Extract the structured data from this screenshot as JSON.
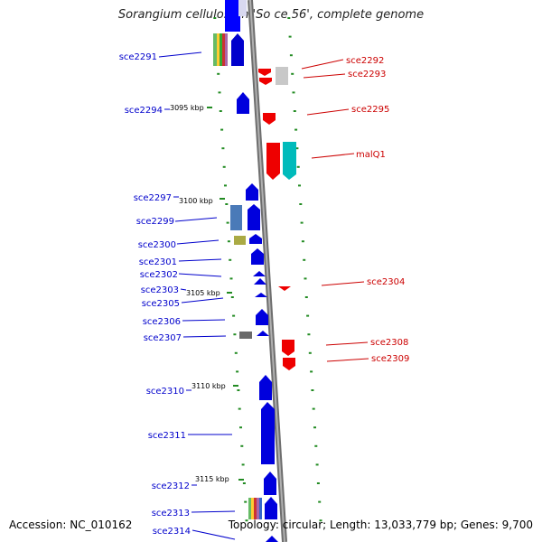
{
  "title": "Sorangium cellulosum 'So ce 56', complete genome",
  "footer": {
    "accession": "Accession: NC_010162",
    "summary": "Topology: circular; Length: 13,033,779 bp; Genes: 9,700"
  },
  "colors": {
    "forward_gene": "#0000ff",
    "reverse_gene": "#ff0000",
    "forward_label": "#0000cc",
    "reverse_label": "#cc0000",
    "backbone": "#8c8c8c",
    "tick": "#228b22"
  },
  "kbp_marks": [
    "3095 kbp",
    "3100 kbp",
    "3105 kbp",
    "3110 kbp",
    "3115 kbp"
  ],
  "forward_labels": [
    "sce2291",
    "sce2294",
    "sce2297",
    "sce2299",
    "sce2300",
    "sce2301",
    "sce2302",
    "sce2303",
    "sce2305",
    "sce2306",
    "sce2307",
    "sce2310",
    "sce2311",
    "sce2312",
    "sce2313",
    "sce2314"
  ],
  "reverse_labels": [
    "sce2292",
    "sce2293",
    "sce2295",
    "malQ1",
    "sce2304",
    "sce2308",
    "sce2309"
  ]
}
